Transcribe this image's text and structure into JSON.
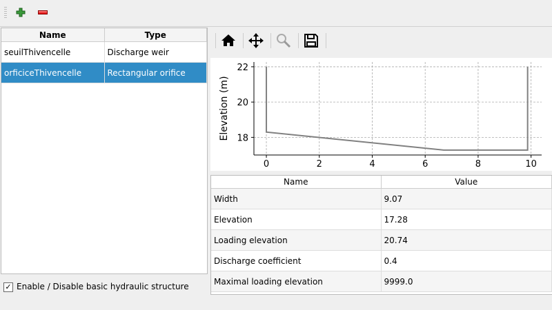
{
  "toolbar": {
    "add_icon": "plus-icon",
    "remove_icon": "minus-icon"
  },
  "structures_table": {
    "columns": [
      "Name",
      "Type"
    ],
    "rows": [
      {
        "name": "seuilThivencelle",
        "type": "Discharge weir"
      },
      {
        "name": "orficiceThivencelle",
        "type": "Rectangular orifice",
        "selected": true
      }
    ]
  },
  "enable_checkbox": {
    "label": "Enable / Disable basic hydraulic structure",
    "checked": true,
    "mark": "✓"
  },
  "plot_toolbar": [
    "home-icon",
    "pan-icon",
    "zoom-icon",
    "save-icon"
  ],
  "chart_data": {
    "type": "line",
    "ylabel": "Elevation (m)",
    "xlabel": "",
    "xlim": [
      -0.47,
      10.4
    ],
    "ylim": [
      17.0,
      22.27
    ],
    "xticks": [
      "0",
      "2",
      "4",
      "6",
      "8",
      "10"
    ],
    "yticks": [
      "18",
      "20",
      "22"
    ],
    "grid": true,
    "line_color": "#808080",
    "series": [
      {
        "x": [
          0,
          0,
          6.7,
          9.87,
          9.87
        ],
        "y": [
          22,
          18.3,
          17.28,
          17.28,
          22
        ]
      }
    ]
  },
  "params_table": {
    "columns": [
      "Name",
      "Value"
    ],
    "rows": [
      [
        "Width",
        "9.07"
      ],
      [
        "Elevation",
        "17.28"
      ],
      [
        "Loading elevation",
        "20.74"
      ],
      [
        "Discharge coefficient",
        "0.4"
      ],
      [
        "Maximal loading elevation",
        "9999.0"
      ]
    ]
  }
}
